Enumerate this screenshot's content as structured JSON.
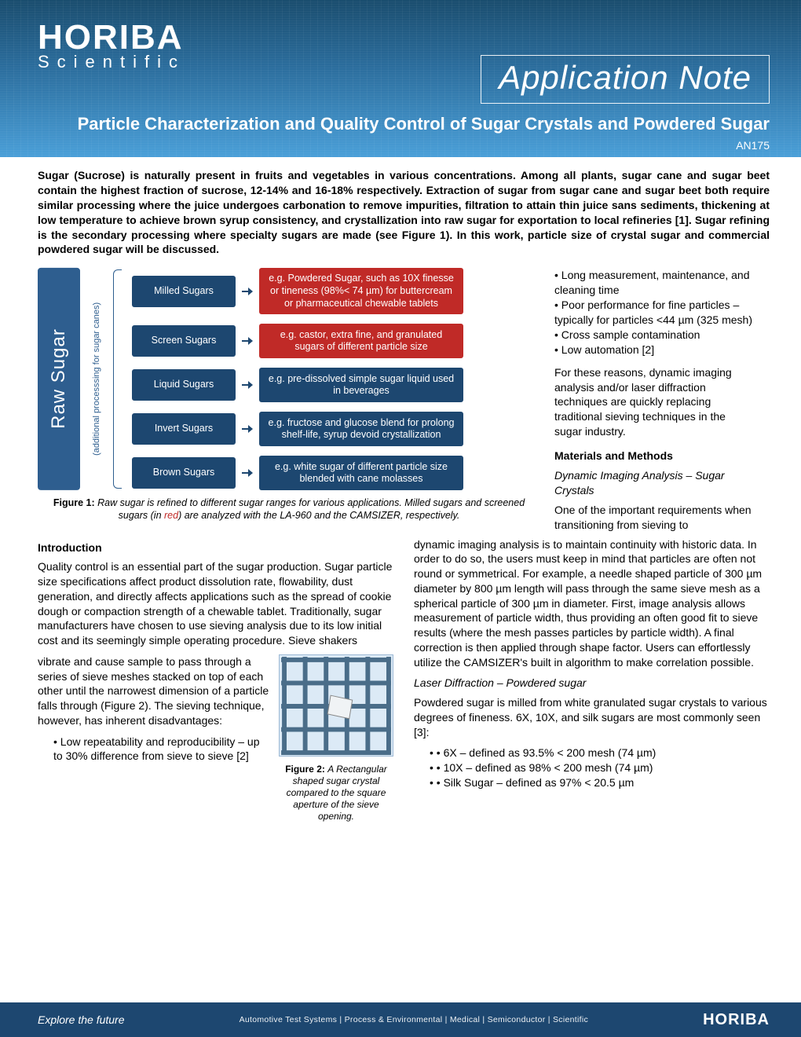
{
  "header": {
    "logo_main": "HORIBA",
    "logo_sub": "Scientific",
    "app_note_label": "Application Note",
    "title": "Particle Characterization and Quality Control of Sugar Crystals and Powdered Sugar",
    "doc_id": "AN175",
    "bg_gradient": [
      "#1a4d6e",
      "#4a9fd8"
    ]
  },
  "intro": "Sugar (Sucrose) is naturally present in fruits and vegetables in various concentrations. Among all plants, sugar cane and sugar beet contain the highest fraction of sucrose, 12-14% and 16-18% respectively. Extraction of sugar from sugar cane and sugar beet both require similar processing where the juice undergoes carbonation to remove impurities, filtration to attain thin juice sans sediments, thickening at low temperature to achieve brown syrup consistency, and crystallization into raw sugar for exportation to local refineries [1].  Sugar refining is the secondary processing where specialty sugars are made (see Figure 1). In this work, particle size of crystal sugar and commercial powdered sugar will be discussed.",
  "figure1": {
    "raw_label": "Raw Sugar",
    "addl_label": "(additional processsing for  sugar canes)",
    "colors": {
      "navy": "#1d4770",
      "red": "#c02a27",
      "raw_bg": "#2e5e8f"
    },
    "rows": [
      {
        "cat": "Milled Sugars",
        "desc": "e.g. Powdered Sugar, such as 10X finesse or tineness (98%< 74 µm) for buttercream or pharmaceutical chewable tablets",
        "red": true
      },
      {
        "cat": "Screen Sugars",
        "desc": "e.g. castor, extra fine, and granulated sugars of different particle size",
        "red": true
      },
      {
        "cat": "Liquid Sugars",
        "desc": "e.g. pre-dissolved simple sugar liquid used in beverages",
        "red": false
      },
      {
        "cat": "Invert Sugars",
        "desc": "e.g. fructose and glucose blend for prolong shelf-life, syrup devoid crystallization",
        "red": false
      },
      {
        "cat": "Brown Sugars",
        "desc": "e.g. white sugar of different particle size blended with cane molasses",
        "red": false
      }
    ],
    "caption_prefix": "Figure 1: ",
    "caption_body_1": "Raw sugar is refined to different sugar ranges for various applications. Milled sugars and screened sugars (in ",
    "caption_red": "red",
    "caption_body_2": ") are analyzed with the LA-960 and the CAMSIZER, respectively."
  },
  "right_inline": {
    "bullets": [
      "• Long measurement, maintenance, and cleaning time",
      "• Poor performance for fine particles – typically for    particles <44 µm (325 mesh)",
      "• Cross sample contamination",
      "• Low automation [2]"
    ],
    "para": "For these reasons, dynamic imaging analysis and/or laser diffraction techniques are quickly replacing traditional sieving techniques in the sugar industry.",
    "methods_heading": "Materials and Methods",
    "dia_sub": "Dynamic Imaging Analysis – Sugar Crystals",
    "dia_lead": "One of the important requirements when transitioning from sieving to"
  },
  "col_left": {
    "heading": "Introduction",
    "p1": "Quality control is an essential part of the sugar production.  Sugar particle size specifications affect product dissolution rate, flowability, dust generation, and directly affects applications such as the spread of cookie dough or compaction strength of a chewable tablet.  Traditionally, sugar manufacturers have chosen to use sieving analysis due to its low initial cost and its seemingly simple operating procedure.  Sieve shakers",
    "p2": "vibrate and cause sample to pass through a series of sieve meshes stacked on top of each other until the narrowest dimension of a particle falls through (Figure 2).  The sieving technique, however, has inherent disadvantages:",
    "bullet": "• Low repeatability and reproducibility – up to 30%   difference from sieve to sieve [2]",
    "fig2_prefix": "Figure 2: ",
    "fig2_caption": "A Rectangular shaped sugar crystal compared to the square aperture of the sieve opening."
  },
  "col_right": {
    "p1": "dynamic imaging analysis is to maintain continuity with historic data.  In order to do so, the users must keep in mind that particles are often not round or symmetrical.  For example, a needle shaped particle of 300 µm diameter by 800 µm length will pass through the same sieve mesh as a spherical particle of 300 µm in diameter. First, image analysis allows measurement of particle width, thus providing an often good fit to sieve results (where the mesh passes particles by particle width). A final correction is then applied through shape factor.  Users can effortlessly utilize the CAMSIZER's built in algorithm to make correlation possible.",
    "ld_sub": "Laser Diffraction – Powdered sugar",
    "p2": "Powdered sugar is milled from white granulated sugar crystals to various degrees of fineness.  6X, 10X, and silk sugars are most commonly seen [3]:",
    "defs": [
      "• 6X – defined as 93.5% < 200 mesh (74 µm)",
      "• 10X – defined as 98% < 200 mesh (74 µm)",
      "• Silk Sugar – defined as 97% < 20.5 µm"
    ]
  },
  "figure2_mesh": {
    "grid_color": "#4a6d89",
    "bg_color": "#dceaf6",
    "crystal_color": "#e8ecef",
    "rows": 4,
    "cols": 5
  },
  "footer": {
    "tagline": "Explore the future",
    "segments": "Automotive Test Systems  |  Process & Environmental  |  Medical  |  Semiconductor  |  Scientific",
    "logo": "HORIBA",
    "bg": "#1d4770"
  }
}
